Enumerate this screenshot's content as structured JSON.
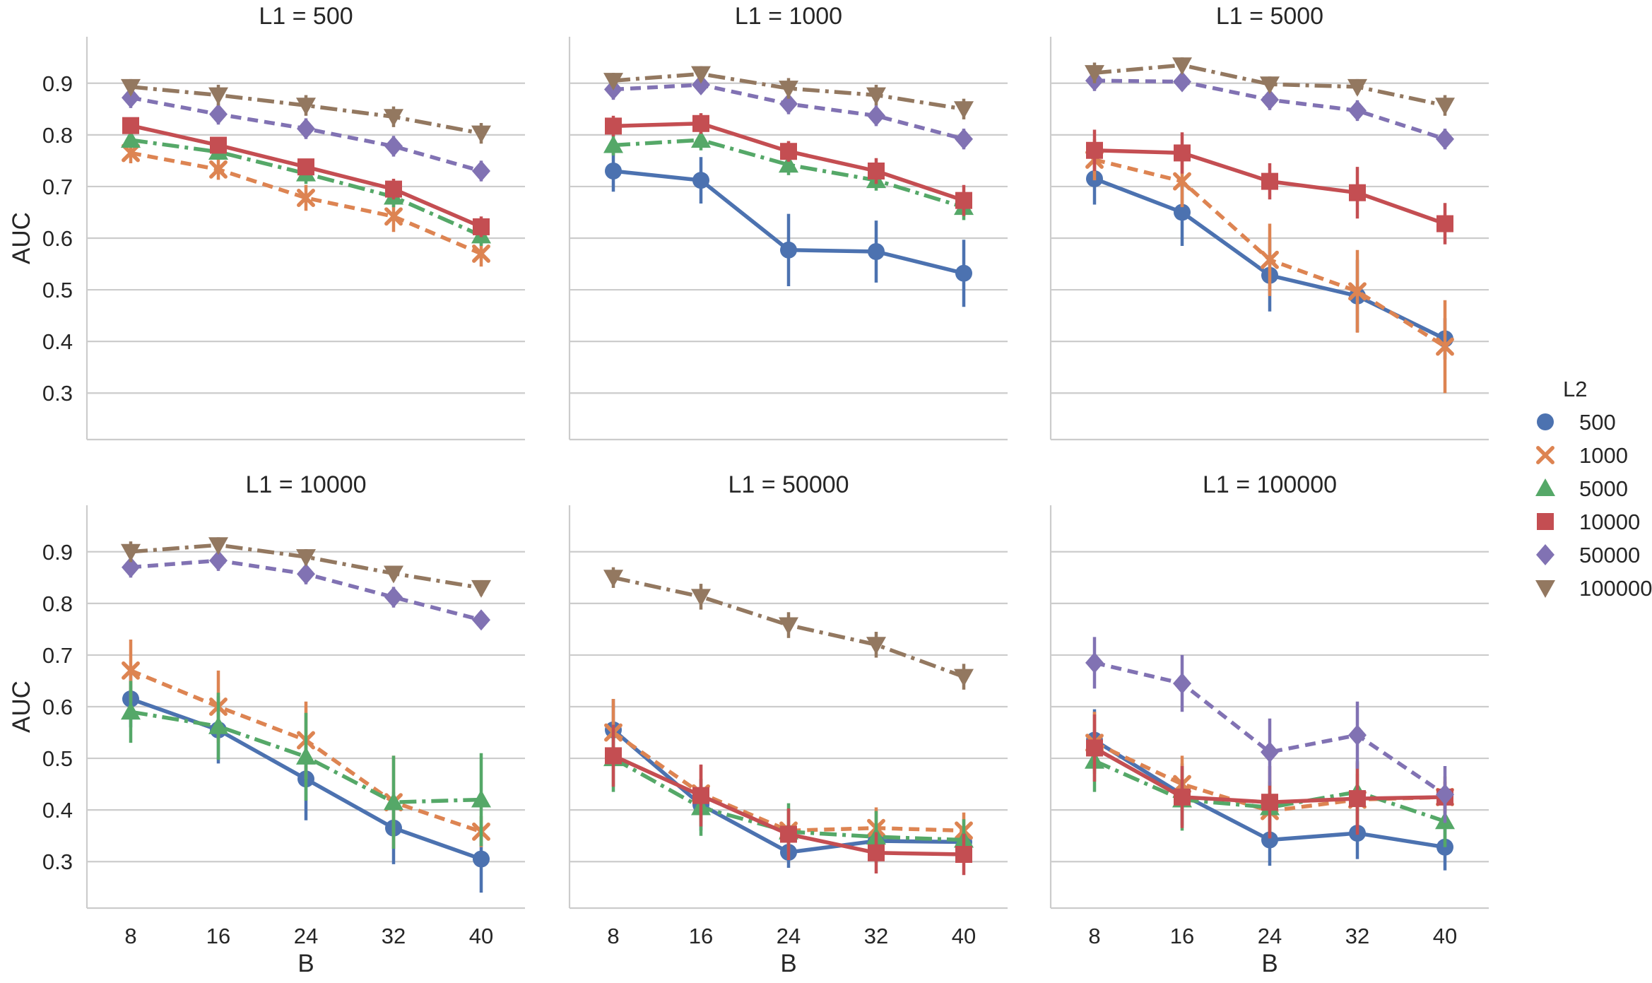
{
  "chart_data": {
    "type": "line",
    "layout": "facet-grid-2x3",
    "xlabel": "B",
    "ylabel": "AUC",
    "x": [
      8,
      16,
      24,
      32,
      40
    ],
    "x_tick_labels": [
      "8",
      "16",
      "24",
      "32",
      "40"
    ],
    "y_ticks": [
      0.3,
      0.4,
      0.5,
      0.6,
      0.7,
      0.8,
      0.9
    ],
    "y_tick_labels": [
      "0.3",
      "0.4",
      "0.5",
      "0.6",
      "0.7",
      "0.8",
      "0.9"
    ],
    "ylim": [
      0.21,
      0.99
    ],
    "grid": "horizontal",
    "legend": {
      "title": "L2",
      "placement": "right",
      "entries": [
        {
          "label": "500",
          "color": "#4c72b0",
          "marker": "circle",
          "dash": "solid"
        },
        {
          "label": "1000",
          "color": "#dd8452",
          "marker": "x",
          "dash": "dashed"
        },
        {
          "label": "5000",
          "color": "#55a868",
          "marker": "triangle-up",
          "dash": "dashdot"
        },
        {
          "label": "10000",
          "color": "#c44e52",
          "marker": "square",
          "dash": "solid"
        },
        {
          "label": "50000",
          "color": "#8172b3",
          "marker": "diamond",
          "dash": "dashed"
        },
        {
          "label": "100000",
          "color": "#937860",
          "marker": "triangle-down",
          "dash": "dashdot"
        }
      ]
    },
    "panels": [
      {
        "title": "L1 = 500",
        "series": [
          {
            "name": "500",
            "values": null,
            "errors": null
          },
          {
            "name": "1000",
            "values": [
              0.765,
              0.733,
              0.678,
              0.642,
              0.57
            ],
            "errors": [
              0.02,
              0.02,
              0.025,
              0.03,
              0.025
            ]
          },
          {
            "name": "5000",
            "values": [
              0.79,
              0.767,
              0.725,
              0.68,
              0.605
            ],
            "errors": [
              0.015,
              0.015,
              0.02,
              0.02,
              0.02
            ]
          },
          {
            "name": "10000",
            "values": [
              0.818,
              0.78,
              0.738,
              0.695,
              0.622
            ],
            "errors": [
              0.015,
              0.015,
              0.015,
              0.02,
              0.02
            ]
          },
          {
            "name": "50000",
            "values": [
              0.872,
              0.84,
              0.812,
              0.778,
              0.73
            ],
            "errors": [
              0.02,
              0.02,
              0.02,
              0.02,
              0.02
            ]
          },
          {
            "name": "100000",
            "values": [
              0.893,
              0.877,
              0.857,
              0.835,
              0.803
            ],
            "errors": [
              0.015,
              0.02,
              0.02,
              0.02,
              0.02
            ]
          }
        ]
      },
      {
        "title": "L1 = 1000",
        "series": [
          {
            "name": "500",
            "values": [
              0.73,
              0.712,
              0.577,
              0.574,
              0.532
            ],
            "errors": [
              0.04,
              0.045,
              0.07,
              0.06,
              0.065
            ]
          },
          {
            "name": "1000",
            "values": null,
            "errors": null
          },
          {
            "name": "5000",
            "values": [
              0.78,
              0.79,
              0.742,
              0.712,
              0.66
            ],
            "errors": [
              0.02,
              0.02,
              0.02,
              0.02,
              0.025
            ]
          },
          {
            "name": "10000",
            "values": [
              0.817,
              0.822,
              0.768,
              0.73,
              0.673
            ],
            "errors": [
              0.02,
              0.02,
              0.02,
              0.025,
              0.03
            ]
          },
          {
            "name": "50000",
            "values": [
              0.888,
              0.897,
              0.86,
              0.837,
              0.792
            ],
            "errors": [
              0.02,
              0.015,
              0.02,
              0.02,
              0.02
            ]
          },
          {
            "name": "100000",
            "values": [
              0.905,
              0.918,
              0.89,
              0.877,
              0.85
            ],
            "errors": [
              0.015,
              0.015,
              0.02,
              0.02,
              0.02
            ]
          }
        ]
      },
      {
        "title": "L1 = 5000",
        "series": [
          {
            "name": "500",
            "values": [
              0.715,
              0.65,
              0.528,
              0.488,
              0.405
            ],
            "errors": [
              0.05,
              0.065,
              0.07,
              0.07,
              0.04
            ]
          },
          {
            "name": "1000",
            "values": [
              0.752,
              0.71,
              0.558,
              0.497,
              0.39
            ],
            "errors": [
              0.04,
              0.05,
              0.07,
              0.08,
              0.09
            ]
          },
          {
            "name": "5000",
            "values": null,
            "errors": null
          },
          {
            "name": "10000",
            "values": [
              0.77,
              0.765,
              0.71,
              0.688,
              0.628
            ],
            "errors": [
              0.04,
              0.04,
              0.035,
              0.05,
              0.04
            ]
          },
          {
            "name": "50000",
            "values": [
              0.905,
              0.903,
              0.868,
              0.847,
              0.792
            ],
            "errors": [
              0.02,
              0.015,
              0.02,
              0.02,
              0.02
            ]
          },
          {
            "name": "100000",
            "values": [
              0.92,
              0.935,
              0.898,
              0.893,
              0.857
            ],
            "errors": [
              0.02,
              0.015,
              0.015,
              0.015,
              0.02
            ]
          }
        ]
      },
      {
        "title": "L1 = 10000",
        "series": [
          {
            "name": "500",
            "values": [
              0.615,
              0.555,
              0.46,
              0.365,
              0.305
            ],
            "errors": [
              0.055,
              0.065,
              0.08,
              0.07,
              0.065
            ]
          },
          {
            "name": "1000",
            "values": [
              0.67,
              0.6,
              0.535,
              0.415,
              0.358
            ],
            "errors": [
              0.06,
              0.07,
              0.075,
              0.09,
              0.03
            ]
          },
          {
            "name": "5000",
            "values": [
              0.59,
              0.562,
              0.503,
              0.415,
              0.42
            ],
            "errors": [
              0.06,
              0.065,
              0.085,
              0.09,
              0.09
            ]
          },
          {
            "name": "10000",
            "values": null,
            "errors": null
          },
          {
            "name": "50000",
            "values": [
              0.87,
              0.883,
              0.857,
              0.812,
              0.768
            ],
            "errors": [
              0.02,
              0.02,
              0.02,
              0.02,
              0.015
            ]
          },
          {
            "name": "100000",
            "values": [
              0.9,
              0.913,
              0.89,
              0.858,
              0.83
            ],
            "errors": [
              0.02,
              0.015,
              0.015,
              0.015,
              0.015
            ]
          }
        ]
      },
      {
        "title": "L1 = 50000",
        "series": [
          {
            "name": "500",
            "values": [
              0.555,
              0.41,
              0.318,
              0.34,
              0.338
            ],
            "errors": [
              0.06,
              0.05,
              0.03,
              0.03,
              0.03
            ]
          },
          {
            "name": "1000",
            "values": [
              0.55,
              0.432,
              0.36,
              0.365,
              0.36
            ],
            "errors": [
              0.065,
              0.055,
              0.04,
              0.04,
              0.035
            ]
          },
          {
            "name": "5000",
            "values": [
              0.5,
              0.405,
              0.358,
              0.348,
              0.342
            ],
            "errors": [
              0.065,
              0.055,
              0.055,
              0.05,
              0.04
            ]
          },
          {
            "name": "10000",
            "values": [
              0.505,
              0.428,
              0.353,
              0.317,
              0.314
            ],
            "errors": [
              0.06,
              0.06,
              0.05,
              0.04,
              0.04
            ]
          },
          {
            "name": "50000",
            "values": null,
            "errors": null
          },
          {
            "name": "100000",
            "values": [
              0.85,
              0.813,
              0.758,
              0.72,
              0.658
            ],
            "errors": [
              0.02,
              0.025,
              0.025,
              0.025,
              0.025
            ]
          }
        ]
      },
      {
        "title": "L1 = 100000",
        "series": [
          {
            "name": "500",
            "values": [
              0.535,
              0.43,
              0.342,
              0.355,
              0.328
            ],
            "errors": [
              0.06,
              0.06,
              0.05,
              0.05,
              0.045
            ]
          },
          {
            "name": "1000",
            "values": [
              0.53,
              0.45,
              0.398,
              0.42,
              0.425
            ],
            "errors": [
              0.06,
              0.055,
              0.05,
              0.05,
              0.04
            ]
          },
          {
            "name": "5000",
            "values": [
              0.495,
              0.42,
              0.405,
              0.435,
              0.378
            ],
            "errors": [
              0.06,
              0.06,
              0.05,
              0.06,
              0.05
            ]
          },
          {
            "name": "10000",
            "values": [
              0.52,
              0.425,
              0.415,
              0.422,
              0.425
            ],
            "errors": [
              0.065,
              0.06,
              0.07,
              0.07,
              0.03
            ]
          },
          {
            "name": "50000",
            "values": [
              0.685,
              0.645,
              0.512,
              0.545,
              0.43
            ],
            "errors": [
              0.05,
              0.055,
              0.065,
              0.065,
              0.055
            ]
          },
          {
            "name": "100000",
            "values": null,
            "errors": null
          }
        ]
      }
    ]
  }
}
